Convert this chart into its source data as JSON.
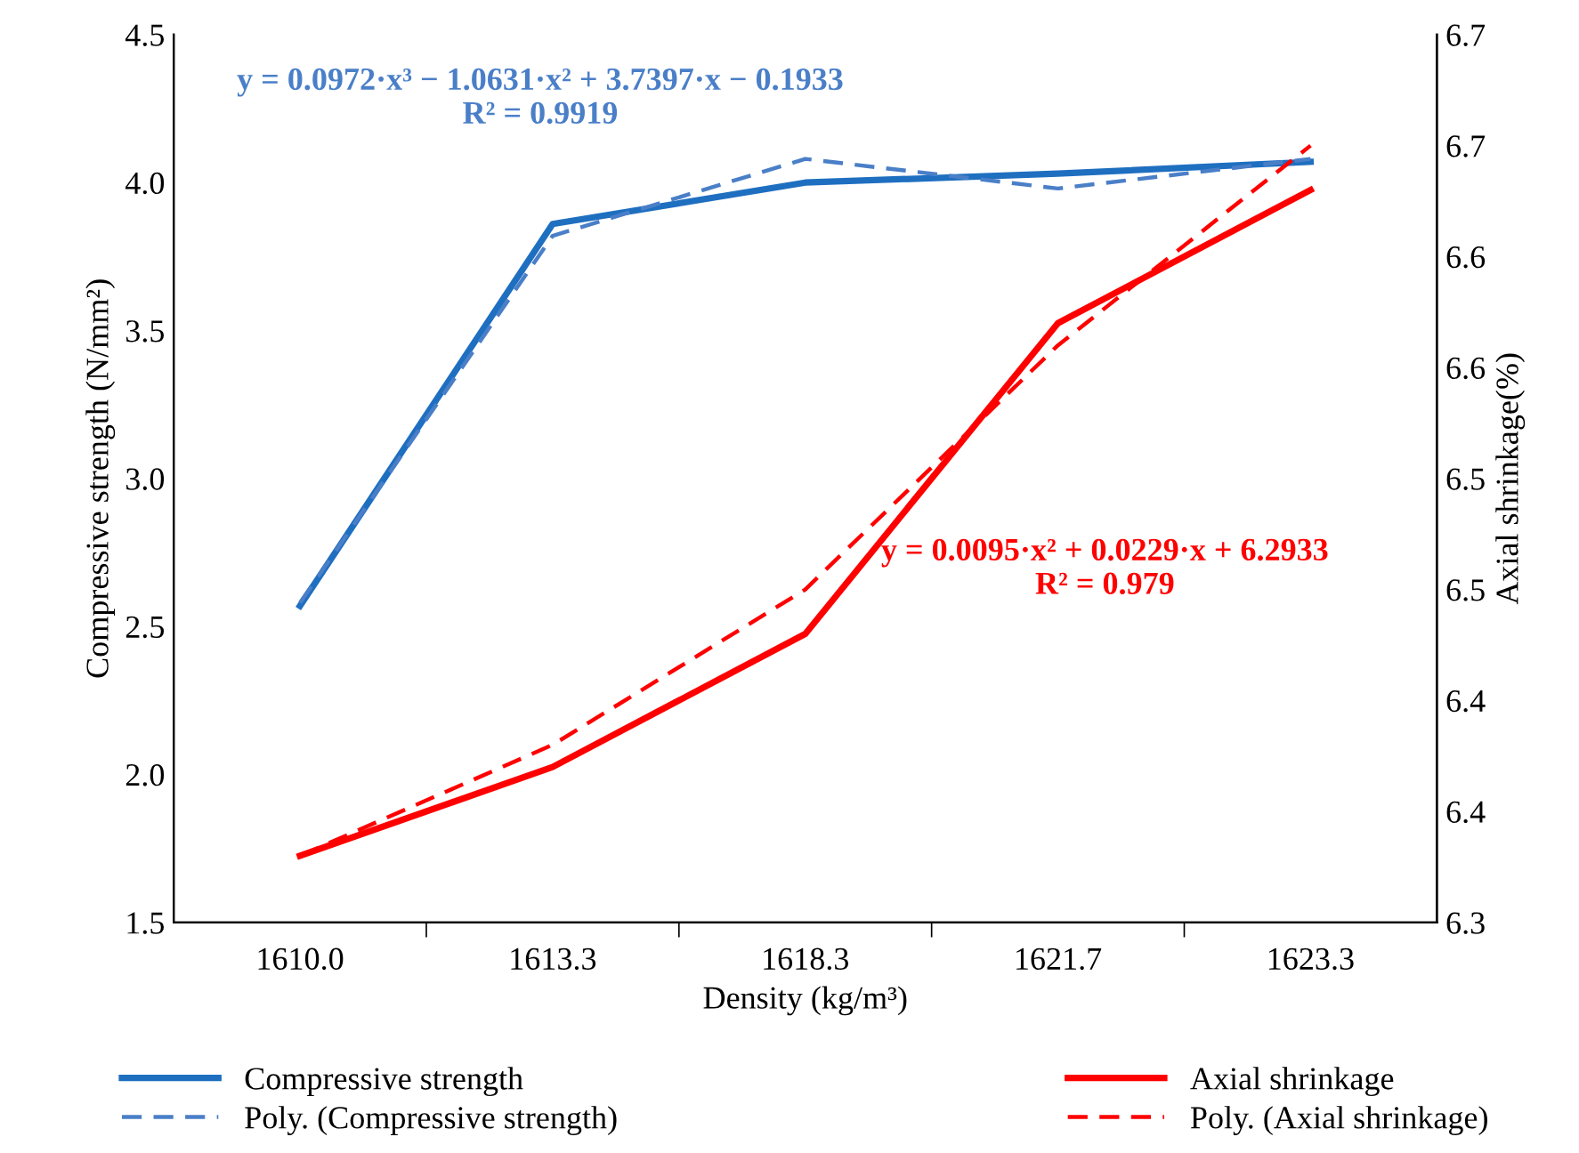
{
  "chart_data": {
    "type": "line",
    "xlabel": "Density (kg/m³)",
    "ylabel": "Compressive strength (N/mm²)",
    "y2label": "Axial shrinkage(%)",
    "categories": [
      "1610.0",
      "1613.3",
      "1618.3",
      "1621.7",
      "1623.3"
    ],
    "ylim": [
      1.5,
      4.5
    ],
    "yticks": [
      1.5,
      {
        "value": 2,
        "label": "2.0"
      },
      2.5,
      {
        "value": 3,
        "label": "3.0"
      },
      3.5,
      {
        "value": 4,
        "label": "4.0"
      },
      4.5
    ],
    "y2lim": [
      6.3,
      6.7
    ],
    "y2ticks": [
      6.3,
      {
        "value": 6.35,
        "label": "6.4"
      },
      {
        "value": 6.4,
        "label": "6.4"
      },
      {
        "value": 6.45,
        "label": "6.5"
      },
      {
        "value": 6.5,
        "label": "6.5"
      },
      {
        "value": 6.55,
        "label": "6.6"
      },
      {
        "value": 6.6,
        "label": "6.6"
      },
      {
        "value": 6.65,
        "label": "6.7"
      },
      {
        "value": 6.7,
        "label": "6.7"
      }
    ],
    "series": [
      {
        "name": "Compressive strength",
        "color": "#1f6fc0",
        "line_style": "solid",
        "values": [
          2.57,
          3.86,
          4.0,
          4.03,
          4.07
        ]
      },
      {
        "name": "Axial shrinkage",
        "color": "#ff0000",
        "line_style": "solid",
        "axis": "y2",
        "values": [
          6.33,
          6.37,
          6.43,
          6.57,
          6.63
        ]
      },
      {
        "name": "Poly. (Compressive strength)",
        "color": "#4a7fc8",
        "line_style": "dashed",
        "values": [
          2.58,
          3.82,
          4.08,
          3.98,
          4.08
        ]
      },
      {
        "name": "Poly. (Axial shrinkage)",
        "color": "#ff0000",
        "line_style": "dashed",
        "axis": "y2",
        "values": [
          6.33,
          6.38,
          6.45,
          6.56,
          6.65
        ]
      }
    ],
    "annotations": [
      "y = 0.0972·x³ − 1.0631·x² + 3.7397·x − 0.1933\nR² = 0.9919",
      "y = 0.0095·x² + 0.0229·x + 6.2933\nR² = 0.979"
    ],
    "grid": false,
    "legend": "bottom",
    "marker": "none"
  }
}
